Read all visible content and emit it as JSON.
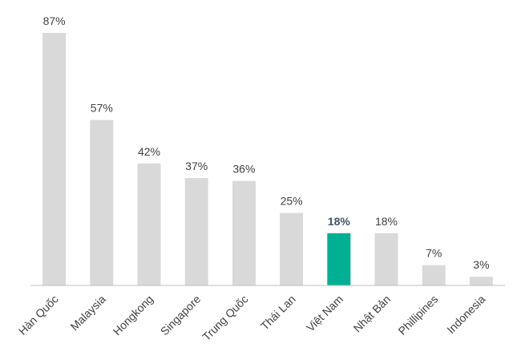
{
  "chart_data": {
    "type": "bar",
    "categories": [
      "Hàn Quốc",
      "Malaysia",
      "Hongkong",
      "Singapore",
      "Trung Quốc",
      "Thái Lan",
      "Việt Nam",
      "Nhật Bản",
      "Phillipines",
      "Indonesia"
    ],
    "values": [
      87,
      57,
      42,
      37,
      36,
      25,
      18,
      18,
      7,
      3
    ],
    "value_labels": [
      "87%",
      "57%",
      "42%",
      "37%",
      "36%",
      "25%",
      "18%",
      "18%",
      "7%",
      "3%"
    ],
    "colors": [
      "#d9d9d9",
      "#d9d9d9",
      "#d9d9d9",
      "#d9d9d9",
      "#d9d9d9",
      "#d9d9d9",
      "#00b092",
      "#d9d9d9",
      "#d9d9d9",
      "#d9d9d9"
    ],
    "value_label_colors": [
      "#404040",
      "#404040",
      "#404040",
      "#404040",
      "#404040",
      "#404040",
      "#44546a",
      "#404040",
      "#404040",
      "#404040"
    ]
  }
}
